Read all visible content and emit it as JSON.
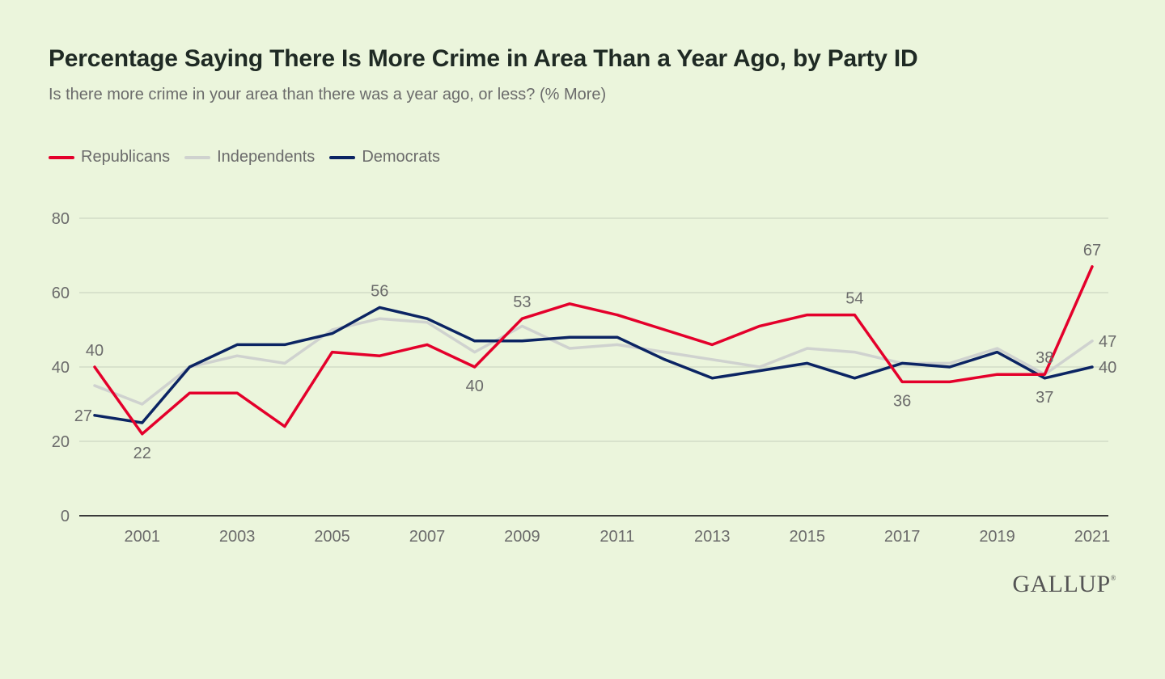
{
  "title": "Percentage Saying There Is More Crime in Area Than a Year Ago, by Party ID",
  "subtitle": "Is there more crime in your area than there was a year ago, or less? (% More)",
  "logo": "GALLUP",
  "colors": {
    "republicans": "#e4002b",
    "independents": "#cfd2cf",
    "democrats": "#0b2463",
    "grid": "#d2dcc6",
    "axis": "#3a3a3a",
    "tick_text": "#6b6b6b",
    "label_text": "#6b6b6b"
  },
  "chart_data": {
    "type": "line",
    "title": "Percentage Saying There Is More Crime in Area Than a Year Ago, by Party ID",
    "subtitle": "Is there more crime in your area than there was a year ago, or less? (% More)",
    "xlabel": "",
    "ylabel": "",
    "x": [
      2000,
      2001,
      2002,
      2003,
      2004,
      2005,
      2006,
      2007,
      2008,
      2009,
      2010,
      2011,
      2012,
      2013,
      2014,
      2015,
      2016,
      2017,
      2018,
      2019,
      2020,
      2021
    ],
    "x_ticks": [
      2001,
      2003,
      2005,
      2007,
      2009,
      2011,
      2013,
      2015,
      2017,
      2019,
      2021
    ],
    "y_ticks": [
      0,
      20,
      40,
      60,
      80
    ],
    "ylim": [
      0,
      80
    ],
    "grid": true,
    "legend_position": "top-left",
    "series": [
      {
        "name": "Independents",
        "key": "independents",
        "values": [
          35,
          30,
          40,
          43,
          41,
          50,
          53,
          52,
          44,
          51,
          45,
          46,
          44,
          42,
          40,
          45,
          44,
          41,
          41,
          45,
          38,
          47
        ],
        "labels": [
          {
            "index": 21,
            "text": "47",
            "pos": "right"
          }
        ]
      },
      {
        "name": "Democrats",
        "key": "democrats",
        "values": [
          27,
          25,
          40,
          46,
          46,
          49,
          56,
          53,
          47,
          47,
          48,
          48,
          42,
          37,
          39,
          41,
          37,
          41,
          40,
          44,
          37,
          40
        ],
        "labels": [
          {
            "index": 0,
            "text": "27",
            "pos": "left"
          },
          {
            "index": 6,
            "text": "56",
            "pos": "above"
          },
          {
            "index": 20,
            "text": "37",
            "pos": "below"
          },
          {
            "index": 21,
            "text": "40",
            "pos": "right"
          }
        ]
      },
      {
        "name": "Republicans",
        "key": "republicans",
        "values": [
          40,
          22,
          33,
          33,
          24,
          44,
          43,
          46,
          40,
          53,
          57,
          54,
          50,
          46,
          51,
          54,
          54,
          36,
          36,
          38,
          38,
          67
        ],
        "labels": [
          {
            "index": 0,
            "text": "40",
            "pos": "above"
          },
          {
            "index": 1,
            "text": "22",
            "pos": "below"
          },
          {
            "index": 8,
            "text": "40",
            "pos": "below"
          },
          {
            "index": 9,
            "text": "53",
            "pos": "above"
          },
          {
            "index": 16,
            "text": "54",
            "pos": "above"
          },
          {
            "index": 17,
            "text": "36",
            "pos": "below"
          },
          {
            "index": 20,
            "text": "38",
            "pos": "above"
          },
          {
            "index": 21,
            "text": "67",
            "pos": "above"
          }
        ]
      }
    ]
  },
  "legend": [
    {
      "label": "Republicans",
      "color": "#e4002b"
    },
    {
      "label": "Independents",
      "color": "#cfd2cf"
    },
    {
      "label": "Democrats",
      "color": "#0b2463"
    }
  ]
}
